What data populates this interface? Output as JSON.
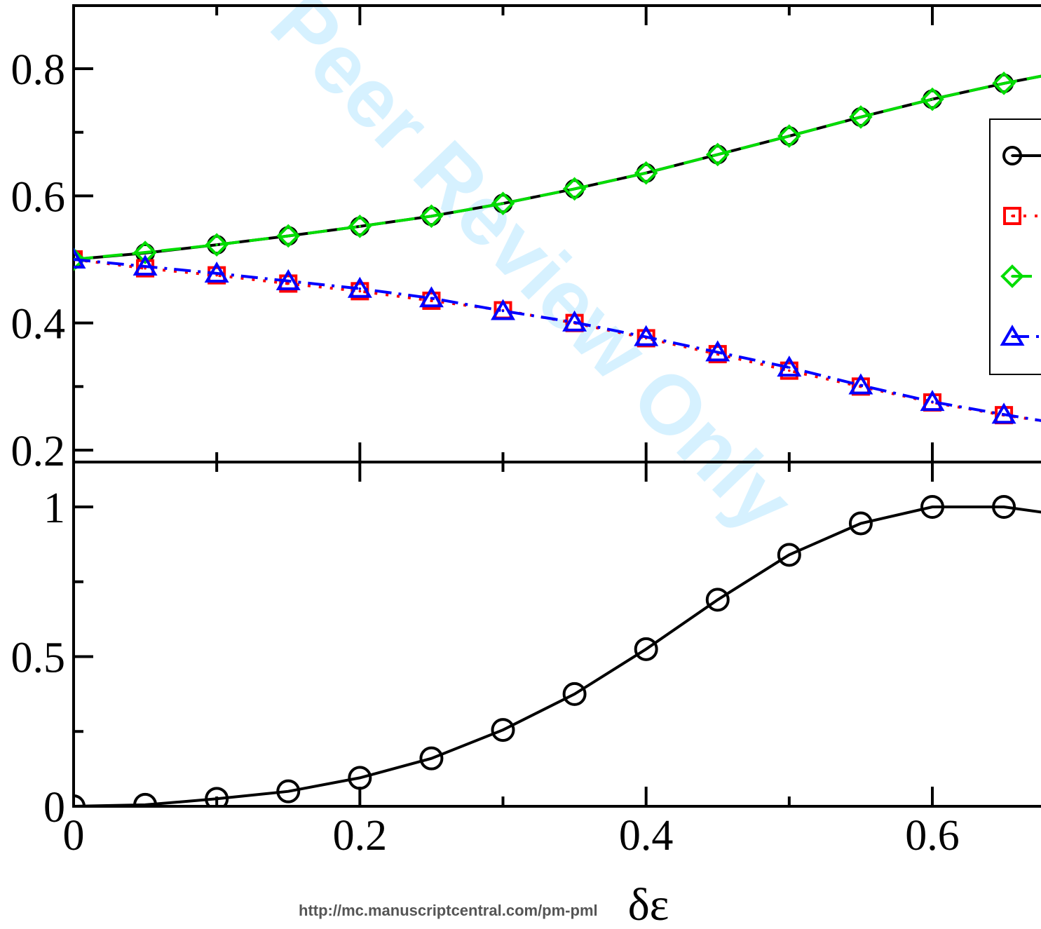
{
  "watermark": "Peer Review Only",
  "footer": "http://mc.manuscriptcentral.com/pm-pml",
  "chart_data": [
    {
      "type": "line",
      "panel": "top",
      "xlabel": "",
      "ylabel": "",
      "xlim": [
        0,
        0.68
      ],
      "ylim": [
        0.18,
        0.9
      ],
      "yticks": [
        0.2,
        0.4,
        0.6,
        0.8
      ],
      "ytick_labels": [
        "0.2",
        "0.4",
        "0.6",
        "0.8"
      ],
      "legend_placement": "right",
      "series": [
        {
          "color": "#000000",
          "marker": "circle",
          "dash": "solid",
          "x": [
            0,
            0.05,
            0.1,
            0.15,
            0.2,
            0.25,
            0.3,
            0.35,
            0.4,
            0.45,
            0.5,
            0.55,
            0.6,
            0.65,
            0.68
          ],
          "y": [
            0.5,
            0.51,
            0.523,
            0.537,
            0.552,
            0.568,
            0.588,
            0.611,
            0.636,
            0.665,
            0.694,
            0.724,
            0.752,
            0.777,
            0.79
          ]
        },
        {
          "color": "#ff0000",
          "marker": "square",
          "dash": "dotted",
          "x": [
            0,
            0.05,
            0.1,
            0.15,
            0.2,
            0.25,
            0.3,
            0.35,
            0.4,
            0.45,
            0.5,
            0.55,
            0.6,
            0.65,
            0.68
          ],
          "y": [
            0.5,
            0.486,
            0.475,
            0.462,
            0.45,
            0.435,
            0.42,
            0.4,
            0.376,
            0.351,
            0.325,
            0.3,
            0.275,
            0.255,
            0.245
          ]
        },
        {
          "color": "#00dd00",
          "marker": "diamond",
          "dash": "dashed",
          "x": [
            0,
            0.05,
            0.1,
            0.15,
            0.2,
            0.25,
            0.3,
            0.35,
            0.4,
            0.45,
            0.5,
            0.55,
            0.6,
            0.65,
            0.68
          ],
          "y": [
            0.5,
            0.511,
            0.523,
            0.537,
            0.552,
            0.568,
            0.588,
            0.611,
            0.636,
            0.665,
            0.694,
            0.724,
            0.752,
            0.777,
            0.79
          ]
        },
        {
          "color": "#0000ff",
          "marker": "triangle",
          "dash": "dashdot",
          "x": [
            0,
            0.05,
            0.1,
            0.15,
            0.2,
            0.25,
            0.3,
            0.35,
            0.4,
            0.45,
            0.5,
            0.55,
            0.6,
            0.65,
            0.68
          ],
          "y": [
            0.5,
            0.489,
            0.478,
            0.466,
            0.454,
            0.439,
            0.419,
            0.401,
            0.378,
            0.354,
            0.33,
            0.302,
            0.276,
            0.256,
            0.245
          ]
        }
      ]
    },
    {
      "type": "line",
      "panel": "bottom",
      "xlabel": "δε",
      "ylabel": "",
      "xlim": [
        0,
        0.68
      ],
      "ylim": [
        0,
        1.16
      ],
      "xticks": [
        0,
        0.2,
        0.4,
        0.6
      ],
      "xtick_labels": [
        "0",
        "0.2",
        "0.4",
        "0.6"
      ],
      "yticks": [
        0,
        0.5,
        1
      ],
      "ytick_labels": [
        "0",
        "0.5",
        "1"
      ],
      "series": [
        {
          "color": "#000000",
          "marker": "circle",
          "dash": "solid",
          "x": [
            0,
            0.05,
            0.1,
            0.15,
            0.2,
            0.25,
            0.3,
            0.35,
            0.4,
            0.45,
            0.5,
            0.55,
            0.6,
            0.65,
            0.68
          ],
          "y": [
            0.0,
            0.005,
            0.025,
            0.05,
            0.095,
            0.16,
            0.255,
            0.375,
            0.525,
            0.69,
            0.84,
            0.945,
            1.0,
            1.0,
            0.98
          ]
        }
      ]
    }
  ]
}
